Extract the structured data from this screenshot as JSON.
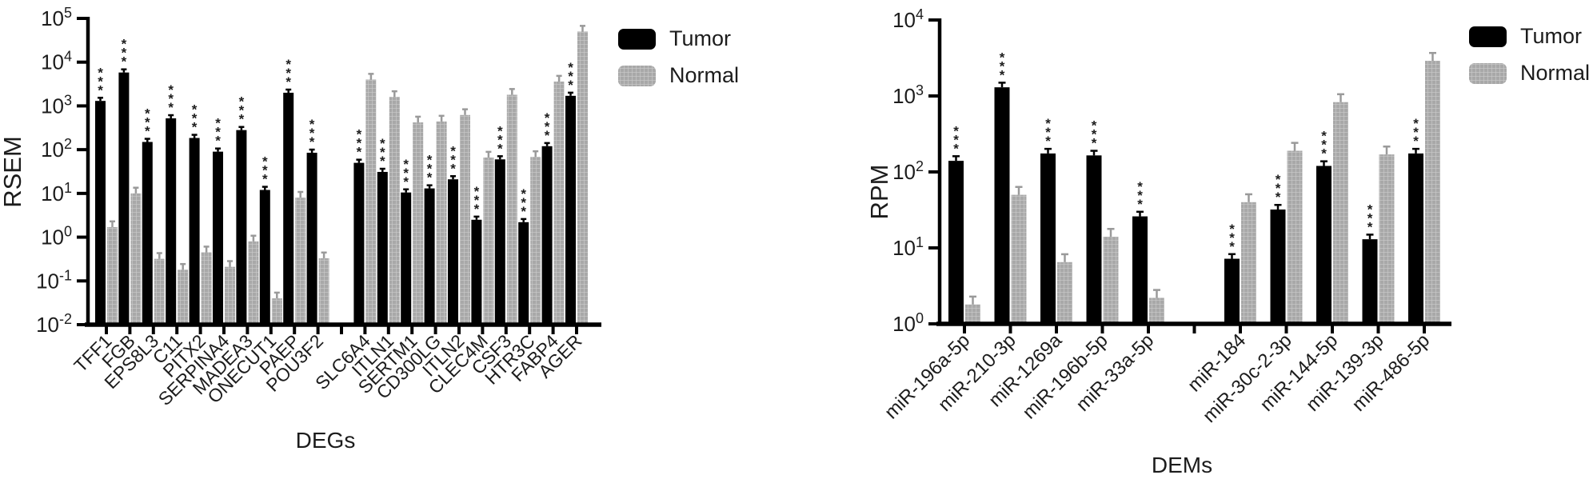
{
  "figure": {
    "legend": {
      "tumor_label": "Tumor",
      "normal_label": "Normal"
    },
    "colors": {
      "tumor": "#000000",
      "normal_base": "#a8a8a8",
      "normal_hatch": "#cbcbcb",
      "axis": "#000000",
      "text": "#1c1c1c"
    }
  },
  "chart_data": [
    {
      "id": "degs",
      "type": "bar",
      "xlabel": "DEGs",
      "ylabel": "RSEM",
      "yscale": "log",
      "ylim": [
        0.01,
        100000
      ],
      "ytick_exponents": [
        5,
        4,
        3,
        2,
        1,
        0,
        -1,
        -2
      ],
      "grid": false,
      "legend_position": "top-right-outside",
      "significance": {
        "marker": "***",
        "applies_to": "Tumor"
      },
      "gap_after_index": 9,
      "categories": [
        "TFF1",
        "FGB",
        "EPS8L3",
        "C11",
        "PITX2",
        "SERPINA4",
        "MADEA3",
        "ONECUT1",
        "PAEP",
        "POU3F2",
        "SLC6A4",
        "ITLN1",
        "SERTM1",
        "CD300LG",
        "ITLN2",
        "CLEC4M",
        "CSF3",
        "HTR3C",
        "FABP4",
        "AGER"
      ],
      "series": [
        {
          "name": "Tumor",
          "values": [
            1300,
            5800,
            150,
            520,
            185,
            90,
            280,
            12,
            2000,
            85,
            50,
            31,
            10.5,
            13,
            21,
            2.5,
            60,
            2.2,
            120,
            1700
          ]
        },
        {
          "name": "Normal",
          "values": [
            1.7,
            10,
            0.32,
            0.18,
            0.45,
            0.21,
            0.8,
            0.04,
            8,
            0.33,
            4000,
            1600,
            420,
            440,
            620,
            66,
            1800,
            68,
            3600,
            50000
          ]
        }
      ]
    },
    {
      "id": "dems",
      "type": "bar",
      "xlabel": "DEMs",
      "ylabel": "RPM",
      "yscale": "log",
      "ylim": [
        1,
        10000
      ],
      "ytick_exponents": [
        4,
        3,
        2,
        1,
        0
      ],
      "grid": false,
      "legend_position": "top-right-outside",
      "significance": {
        "marker": "***",
        "applies_to": "Tumor"
      },
      "gap_after_index": 4,
      "categories": [
        "miR-196a-5p",
        "miR-210-3p",
        "miR-1269a",
        "miR-196b-5p",
        "miR-33a-5p",
        "miR-184",
        "miR-30c-2-3p",
        "miR-144-5p",
        "miR-139-3p",
        "miR-486-5p"
      ],
      "series": [
        {
          "name": "Tumor",
          "values": [
            140,
            1300,
            175,
            165,
            26,
            7.2,
            32,
            120,
            13,
            175
          ]
        },
        {
          "name": "Normal",
          "values": [
            1.8,
            50,
            6.5,
            14,
            2.2,
            40,
            190,
            830,
            170,
            2900
          ]
        }
      ]
    }
  ]
}
